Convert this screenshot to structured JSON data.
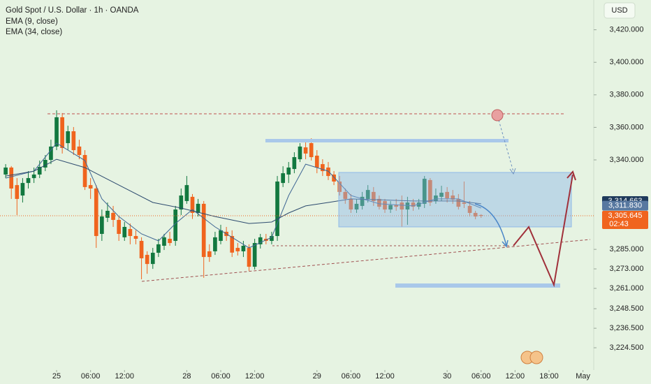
{
  "chart_data": {
    "type": "candlestick",
    "title": "Gold Spot / U.S. Dollar · 1h · OANDA",
    "currency": "USD",
    "up_color": "#12783f",
    "down_color": "#f0641e",
    "candles": {
      "open": [
        3331.0,
        3335.3,
        3324.5,
        3318.1,
        3325.8,
        3328.8,
        3331.0,
        3335.3,
        3340.0,
        3348.2,
        3366.2,
        3350.3,
        3357.6,
        3348.2,
        3343.0,
        3324.5,
        3322.4,
        3294.5,
        3304.4,
        3307.4,
        3303.1,
        3292.4,
        3297.5,
        3293.2,
        3290.2,
        3281.6,
        3276.0,
        3282.9,
        3287.2,
        3291.5,
        3290.2,
        3309.5,
        3314.7,
        3317.3,
        3307.4,
        3313.0,
        3283.8,
        3283.8,
        3290.2,
        3295.8,
        3293.2,
        3285.9,
        3283.8,
        3285.9,
        3274.3,
        3288.1,
        3291.5,
        3290.2,
        3293.2,
        3325.8,
        3331.0,
        3334.4,
        3340.4,
        3347.7,
        3350.3,
        3342.6,
        3337.4,
        3335.3,
        3331.0,
        3326.7,
        3320.3,
        3316.0,
        3309.5,
        3311.7,
        3316.0,
        3320.3,
        3316.0,
        3314.7,
        3309.5,
        3312.2,
        3313.8,
        3309.5,
        3313.8,
        3311.2,
        3313.0,
        3327.6,
        3314.7,
        3317.3,
        3320.3,
        3318.1,
        3316.0,
        3313.8,
        3311.7,
        3307.4,
        3306.1
      ],
      "high": [
        3337.4,
        3336.2,
        3328.8,
        3328.8,
        3333.1,
        3335.3,
        3339.6,
        3343.0,
        3352.4,
        3370.5,
        3368.8,
        3361.0,
        3360.2,
        3352.4,
        3346.0,
        3328.8,
        3324.5,
        3309.5,
        3313.8,
        3311.7,
        3305.2,
        3301.8,
        3300.9,
        3296.7,
        3292.4,
        3283.8,
        3285.9,
        3291.5,
        3294.5,
        3295.8,
        3311.7,
        3322.4,
        3330.1,
        3319.0,
        3316.0,
        3314.7,
        3288.1,
        3295.8,
        3300.1,
        3298.8,
        3296.7,
        3288.9,
        3290.2,
        3288.1,
        3291.5,
        3294.5,
        3294.5,
        3295.8,
        3330.1,
        3336.1,
        3338.7,
        3344.7,
        3350.3,
        3352.4,
        3353.3,
        3346.0,
        3340.4,
        3338.7,
        3333.1,
        3330.1,
        3322.4,
        3319.0,
        3316.0,
        3320.3,
        3324.5,
        3323.3,
        3318.1,
        3316.0,
        3314.7,
        3316.0,
        3318.1,
        3317.3,
        3316.0,
        3316.0,
        3330.1,
        3328.8,
        3322.4,
        3324.1,
        3323.3,
        3321.5,
        3319.0,
        3326.7,
        3314.7,
        3308.7,
        3306.6
      ],
      "low": [
        3328.8,
        3316.0,
        3306.1,
        3313.8,
        3322.4,
        3325.8,
        3328.8,
        3333.1,
        3337.4,
        3346.0,
        3343.9,
        3346.0,
        3343.0,
        3340.4,
        3321.5,
        3316.0,
        3285.9,
        3290.2,
        3301.8,
        3298.8,
        3290.2,
        3290.2,
        3288.1,
        3288.1,
        3266.6,
        3270.0,
        3273.0,
        3280.3,
        3284.6,
        3287.2,
        3287.2,
        3306.1,
        3313.0,
        3303.7,
        3305.2,
        3267.5,
        3277.3,
        3281.6,
        3288.1,
        3290.2,
        3280.3,
        3281.2,
        3280.3,
        3271.8,
        3272.6,
        3285.5,
        3288.1,
        3288.1,
        3290.2,
        3323.3,
        3325.8,
        3331.8,
        3338.7,
        3340.4,
        3339.6,
        3331.8,
        3330.1,
        3327.6,
        3324.5,
        3318.1,
        3313.0,
        3307.4,
        3307.4,
        3309.5,
        3313.8,
        3311.7,
        3309.5,
        3307.4,
        3307.4,
        3308.7,
        3298.8,
        3300.1,
        3308.7,
        3309.5,
        3310.4,
        3311.7,
        3313.0,
        3314.7,
        3313.8,
        3313.0,
        3309.5,
        3310.4,
        3305.2,
        3303.5,
        3304.4
      ],
      "close": [
        3335.3,
        3322.4,
        3316.0,
        3325.8,
        3328.8,
        3331.0,
        3335.7,
        3340.0,
        3348.2,
        3366.2,
        3347.3,
        3357.6,
        3346.0,
        3343.0,
        3323.3,
        3322.4,
        3293.2,
        3305.2,
        3308.7,
        3303.1,
        3294.5,
        3298.8,
        3293.2,
        3291.5,
        3279.5,
        3276.0,
        3282.9,
        3288.1,
        3292.4,
        3288.9,
        3309.5,
        3318.1,
        3324.5,
        3307.4,
        3313.0,
        3280.3,
        3280.3,
        3292.4,
        3296.7,
        3293.2,
        3283.0,
        3283.8,
        3287.2,
        3274.3,
        3288.9,
        3292.4,
        3290.2,
        3293.2,
        3326.7,
        3331.8,
        3335.3,
        3341.7,
        3348.2,
        3343.9,
        3341.7,
        3335.3,
        3333.1,
        3330.1,
        3326.7,
        3320.3,
        3316.0,
        3309.5,
        3313.0,
        3317.3,
        3321.5,
        3314.7,
        3311.2,
        3309.5,
        3312.2,
        3311.2,
        3309.5,
        3313.8,
        3311.2,
        3313.8,
        3328.4,
        3313.8,
        3318.1,
        3319.8,
        3316.4,
        3315.6,
        3311.2,
        3313.0,
        3307.4,
        3305.2,
        3305.6
      ]
    },
    "series": [
      {
        "name": "EMA (9, close)",
        "color": "#3f6694",
        "x": [
          0,
          5,
          9,
          14,
          17,
          20,
          24,
          27,
          30,
          33,
          37,
          40,
          43,
          47,
          50,
          53,
          57,
          61,
          66,
          72,
          76,
          80,
          84
        ],
        "values": [
          3328.8,
          3333.1,
          3350.3,
          3339.6,
          3316.0,
          3305.2,
          3294.5,
          3290.2,
          3300.9,
          3309.5,
          3298.8,
          3292.4,
          3285.9,
          3292.4,
          3318.1,
          3337.4,
          3333.1,
          3318.1,
          3313.0,
          3311.7,
          3316.0,
          3316.0,
          3310.4
        ]
      },
      {
        "name": "EMA (34, close)",
        "color": "#2c4a6e",
        "x": [
          0,
          5,
          9,
          14,
          20,
          26,
          31,
          37,
          43,
          47,
          50,
          53,
          57,
          61,
          66,
          72,
          80,
          84
        ],
        "values": [
          3330.1,
          3333.1,
          3340.4,
          3335.3,
          3324.5,
          3313.8,
          3310.4,
          3305.2,
          3300.9,
          3301.8,
          3307.4,
          3311.7,
          3313.8,
          3316.0,
          3315.5,
          3314.7,
          3314.7,
          3313.0
        ]
      }
    ],
    "xlim": [
      -1,
      103.9
    ],
    "xticks": [
      {
        "value": 9,
        "label": "25"
      },
      {
        "value": 15,
        "label": "06:00"
      },
      {
        "value": 21,
        "label": "12:00"
      },
      {
        "value": 32,
        "label": "28"
      },
      {
        "value": 38,
        "label": "06:00"
      },
      {
        "value": 44,
        "label": "12:00"
      },
      {
        "value": 55,
        "label": "29"
      },
      {
        "value": 61,
        "label": "06:00"
      },
      {
        "value": 67,
        "label": "12:00"
      },
      {
        "value": 78,
        "label": "30"
      },
      {
        "value": 84,
        "label": "06:00"
      },
      {
        "value": 90,
        "label": "12:00"
      },
      {
        "value": 96,
        "label": "18:00"
      },
      {
        "value": 102,
        "label": "May"
      }
    ],
    "ylim": [
      3210.8,
      3438.3
    ],
    "yticks": [
      {
        "value": 3420,
        "label": "3,420.000"
      },
      {
        "value": 3400,
        "label": "3,400.000"
      },
      {
        "value": 3380,
        "label": "3,380.000"
      },
      {
        "value": 3360,
        "label": "3,360.000"
      },
      {
        "value": 3340,
        "label": "3,340.000"
      },
      {
        "value": 3285,
        "label": "3,285.000"
      },
      {
        "value": 3273,
        "label": "3,273.000"
      },
      {
        "value": 3261,
        "label": "3,261.000"
      },
      {
        "value": 3248.5,
        "label": "3,248.500"
      },
      {
        "value": 3236.5,
        "label": "3,236.500"
      },
      {
        "value": 3224.5,
        "label": "3,224.500"
      }
    ],
    "price_labels": [
      {
        "value": 3314.663,
        "label": "3,314.663",
        "color": "#1f3a5c"
      },
      {
        "value": 3311.83,
        "label": "3,311.830",
        "color": "#5878a0"
      },
      {
        "value": 3305.645,
        "label": "3,305.645",
        "color": "#f0641e"
      }
    ],
    "countdown": "02:43"
  }
}
